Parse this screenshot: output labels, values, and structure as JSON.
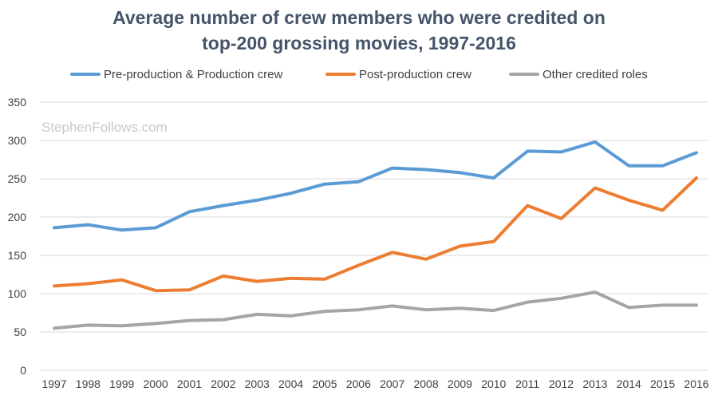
{
  "chart_data": {
    "type": "line",
    "title_line1": "Average number of crew members who were credited on",
    "title_line2": "top-200 grossing movies, 1997-2016",
    "watermark": "StephenFollows.com",
    "legend_position": "top",
    "grid": "horizontal",
    "ylim": [
      0,
      350
    ],
    "yticks": [
      "0",
      "50",
      "100",
      "150",
      "200",
      "250",
      "300",
      "350"
    ],
    "categories": [
      "1997",
      "1998",
      "1999",
      "2000",
      "2001",
      "2002",
      "2003",
      "2004",
      "2005",
      "2006",
      "2007",
      "2008",
      "2009",
      "2010",
      "2011",
      "2012",
      "2013",
      "2014",
      "2015",
      "2016"
    ],
    "series": [
      {
        "name": "Pre-production & Production crew",
        "color": "#5b9bd5",
        "values": [
          186,
          190,
          183,
          186,
          207,
          215,
          222,
          231,
          243,
          246,
          264,
          262,
          258,
          251,
          286,
          285,
          298,
          267,
          267,
          284
        ]
      },
      {
        "name": "Post-production crew",
        "color": "#ed7d31",
        "values": [
          110,
          113,
          118,
          104,
          105,
          123,
          116,
          120,
          119,
          137,
          154,
          145,
          162,
          168,
          215,
          198,
          238,
          222,
          209,
          251
        ]
      },
      {
        "name": "Other credited roles",
        "color": "#a5a5a5",
        "values": [
          55,
          59,
          58,
          61,
          65,
          66,
          73,
          71,
          77,
          79,
          84,
          79,
          81,
          78,
          89,
          94,
          102,
          82,
          85,
          85
        ]
      }
    ]
  }
}
